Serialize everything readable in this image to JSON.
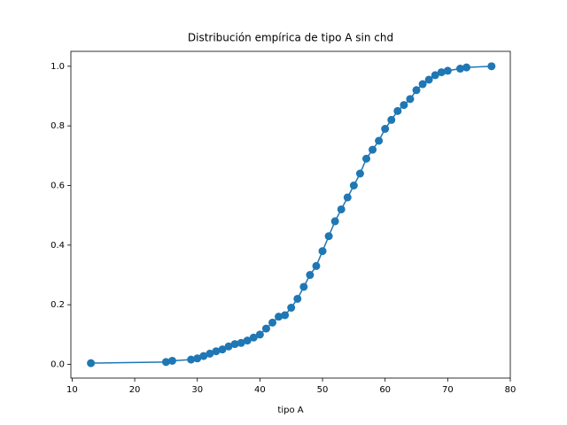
{
  "chart_data": {
    "type": "line",
    "title": "Distribución empírica de tipo A sin chd",
    "x_label": "tipo A",
    "x": [
      13,
      25,
      26,
      29,
      30,
      31,
      32,
      33,
      34,
      35,
      36,
      37,
      38,
      39,
      40,
      41,
      42,
      43,
      44,
      45,
      46,
      47,
      48,
      49,
      50,
      51,
      52,
      53,
      54,
      55,
      56,
      57,
      58,
      59,
      60,
      61,
      62,
      63,
      64,
      65,
      66,
      67,
      68,
      69,
      70,
      72,
      73,
      77
    ],
    "series": [
      {
        "color": "#1f77b4",
        "values": [
          0.004,
          0.008,
          0.012,
          0.016,
          0.02,
          0.028,
          0.036,
          0.044,
          0.05,
          0.06,
          0.068,
          0.072,
          0.08,
          0.09,
          0.1,
          0.12,
          0.14,
          0.16,
          0.165,
          0.19,
          0.22,
          0.26,
          0.3,
          0.33,
          0.38,
          0.43,
          0.48,
          0.52,
          0.56,
          0.6,
          0.64,
          0.69,
          0.72,
          0.75,
          0.79,
          0.82,
          0.85,
          0.87,
          0.89,
          0.92,
          0.94,
          0.955,
          0.97,
          0.98,
          0.985,
          0.992,
          0.996,
          1.0
        ]
      }
    ],
    "xlim": [
      9.8,
      80.0
    ],
    "ylim": [
      -0.046,
      1.05
    ],
    "xticks": [
      10,
      20,
      30,
      40,
      50,
      60,
      70,
      80
    ],
    "yticks": [
      {
        "value": 0,
        "label": "0.0"
      },
      {
        "value": 0.2,
        "label": "0.2"
      },
      {
        "value": 0.4,
        "label": "0.4"
      },
      {
        "value": 0.6,
        "label": "0.6"
      },
      {
        "value": 0.8,
        "label": "0.8"
      },
      {
        "value": 1,
        "label": "1.0"
      }
    ],
    "markers": true
  }
}
